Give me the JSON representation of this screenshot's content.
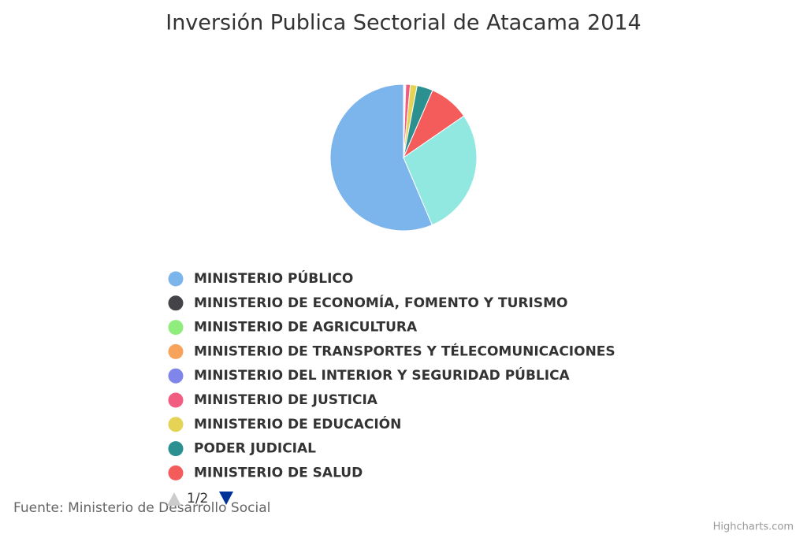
{
  "chart_data": {
    "type": "pie",
    "title": "Inversión Publica Sectorial de Atacama 2014",
    "categories": [
      "MINISTERIO PÚBLICO",
      "MINISTERIO DE ECONOMÍA, FOMENTO Y TURISMO",
      "MINISTERIO DE AGRICULTURA",
      "MINISTERIO DE TRANSPORTES Y TÉLECOMUNICACIONES",
      "MINISTERIO DEL INTERIOR Y SEGURIDAD PÚBLICA",
      "MINISTERIO DE JUSTICIA",
      "MINISTERIO DE EDUCACIÓN",
      "PODER JUDICIAL",
      "MINISTERIO DE SALUD",
      null
    ],
    "values": [
      56.4,
      0.1,
      0.1,
      0.1,
      0.2,
      1.0,
      1.5,
      3.5,
      8.9,
      28.2
    ],
    "colors": [
      "#7cb5ec",
      "#434348",
      "#90ed7d",
      "#f7a35c",
      "#8085e9",
      "#f15c80",
      "#e4d354",
      "#2b908f",
      "#f45b5b",
      "#91e8e1"
    ],
    "legend_page": "1/2",
    "source": "Fuente: Ministerio de Desarrollo Social",
    "credits": "Highcharts.com"
  }
}
